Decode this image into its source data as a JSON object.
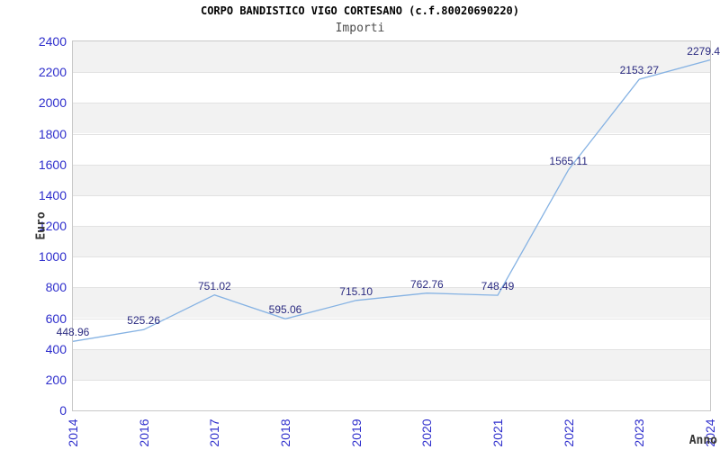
{
  "header": {
    "title": "CORPO BANDISTICO VIGO CORTESANO (c.f.80020690220)",
    "subtitle": "Importi"
  },
  "chart_data": {
    "type": "line",
    "title": "CORPO BANDISTICO VIGO CORTESANO (c.f.80020690220)",
    "subtitle": "Importi",
    "xlabel": "Anno",
    "ylabel": "Euro",
    "categories": [
      "2014",
      "2016",
      "2017",
      "2018",
      "2019",
      "2020",
      "2021",
      "2022",
      "2023",
      "2024"
    ],
    "series": [
      {
        "name": "Importi",
        "values": [
          448.96,
          525.26,
          751.02,
          595.06,
          715.1,
          762.76,
          748.49,
          1565.11,
          2153.27,
          2279.4
        ]
      }
    ],
    "point_labels": [
      "448.96",
      "525.26",
      "751.02",
      "595.06",
      "715.10",
      "762.76",
      "748.49",
      "1565.11",
      "2153.27",
      "2279.4"
    ],
    "ylim": [
      0,
      2400
    ],
    "y_ticks": [
      0,
      200,
      400,
      600,
      800,
      1000,
      1200,
      1400,
      1600,
      1800,
      2000,
      2200,
      2400
    ],
    "legend": "none",
    "grid": "alternating-horizontal-bands-200"
  },
  "colors": {
    "line": "#85b2e3",
    "tick_label": "#2e2ecc",
    "point_label": "#2a2a80",
    "band": "#f2f2f2",
    "gridline": "#e2e2e2",
    "plot_border": "#c8c8c8",
    "title": "#000000",
    "subtitle": "#4d4d4d",
    "axis_title": "#333333",
    "background": "#ffffff"
  }
}
